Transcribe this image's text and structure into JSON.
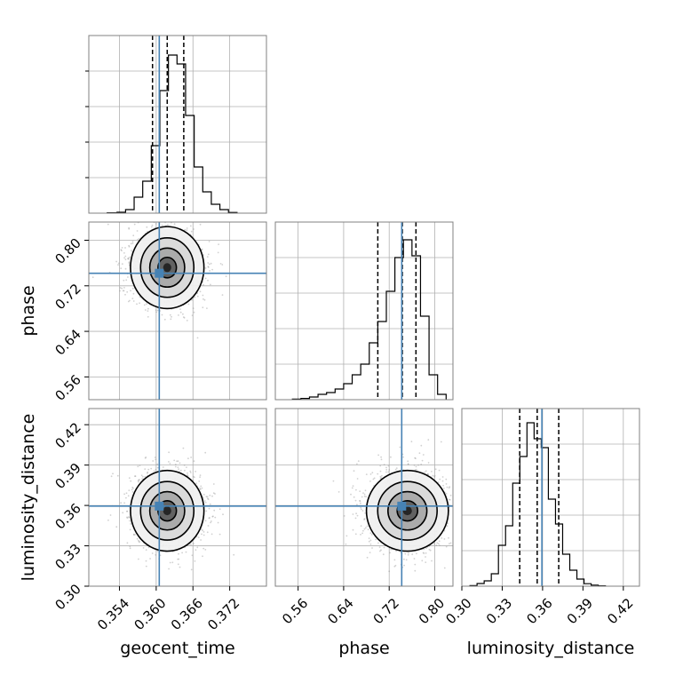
{
  "chart_data": {
    "type": "corner",
    "parameters": [
      "geocent_time",
      "phase",
      "luminosity_distance"
    ],
    "axis_labels": {
      "geocent_time": "geocent_time",
      "phase": "phase",
      "luminosity_distance": "luminosity_distance"
    },
    "truths": {
      "geocent_time": 0.3605,
      "phase": 0.742,
      "luminosity_distance": 0.3595
    },
    "ranges": {
      "geocent_time": [
        0.349,
        0.378
      ],
      "phase": [
        0.52,
        0.832
      ],
      "luminosity_distance": [
        0.3,
        0.432
      ]
    },
    "ticks": {
      "geocent_time": [
        "0.354",
        "0.360",
        "0.366",
        "0.372"
      ],
      "phase": [
        "0.56",
        "0.64",
        "0.72",
        "0.80"
      ],
      "luminosity_distance": [
        "0.30",
        "0.33",
        "0.36",
        "0.39",
        "0.42"
      ]
    },
    "quantiles": {
      "geocent_time": [
        0.3594,
        0.3618,
        0.3645
      ],
      "phase": [
        0.7,
        0.743,
        0.767
      ],
      "luminosity_distance": [
        0.343,
        0.356,
        0.372
      ]
    },
    "histograms": {
      "geocent_time": {
        "edges": [
          0.352,
          0.3536,
          0.355,
          0.3564,
          0.3578,
          0.3592,
          0.3606,
          0.362,
          0.3634,
          0.3648,
          0.3662,
          0.3676,
          0.369,
          0.3704,
          0.3718,
          0.3732
        ],
        "counts": [
          0.002,
          0.005,
          0.02,
          0.09,
          0.18,
          0.38,
          0.69,
          0.89,
          0.84,
          0.55,
          0.26,
          0.12,
          0.05,
          0.02,
          0.004
        ]
      },
      "phase": {
        "edges": [
          0.55,
          0.565,
          0.58,
          0.595,
          0.61,
          0.625,
          0.64,
          0.655,
          0.67,
          0.685,
          0.7,
          0.715,
          0.73,
          0.745,
          0.76,
          0.775,
          0.79,
          0.805,
          0.82
        ],
        "counts": [
          0.003,
          0.007,
          0.015,
          0.03,
          0.04,
          0.06,
          0.09,
          0.14,
          0.2,
          0.32,
          0.44,
          0.61,
          0.8,
          0.9,
          0.81,
          0.47,
          0.14,
          0.03
        ]
      },
      "luminosity_distance": {
        "edges": [
          0.306,
          0.3113,
          0.3166,
          0.3219,
          0.3272,
          0.3325,
          0.3378,
          0.3431,
          0.3484,
          0.3537,
          0.359,
          0.3643,
          0.3696,
          0.3749,
          0.3802,
          0.3855,
          0.3908,
          0.3961,
          0.4014,
          0.4067
        ],
        "counts": [
          0.003,
          0.015,
          0.03,
          0.07,
          0.23,
          0.34,
          0.58,
          0.73,
          0.92,
          0.83,
          0.78,
          0.49,
          0.35,
          0.18,
          0.09,
          0.04,
          0.014,
          0.006,
          0.002
        ]
      }
    },
    "pair_summaries": [
      {
        "x": "geocent_time",
        "y": "phase",
        "mean": [
          0.3618,
          0.752
        ],
        "sd": [
          0.003,
          0.036
        ],
        "corr": 0.0
      },
      {
        "x": "geocent_time",
        "y": "luminosity_distance",
        "mean": [
          0.3618,
          0.356
        ],
        "sd": [
          0.003,
          0.015
        ],
        "corr": 0.0
      },
      {
        "x": "phase",
        "y": "luminosity_distance",
        "mean": [
          0.752,
          0.356
        ],
        "sd": [
          0.036,
          0.015
        ],
        "corr": 0.0
      }
    ],
    "grid": true,
    "truth_color": "#4682b4",
    "contour_color": "#000000",
    "sample_color": "#9a9a9a"
  }
}
